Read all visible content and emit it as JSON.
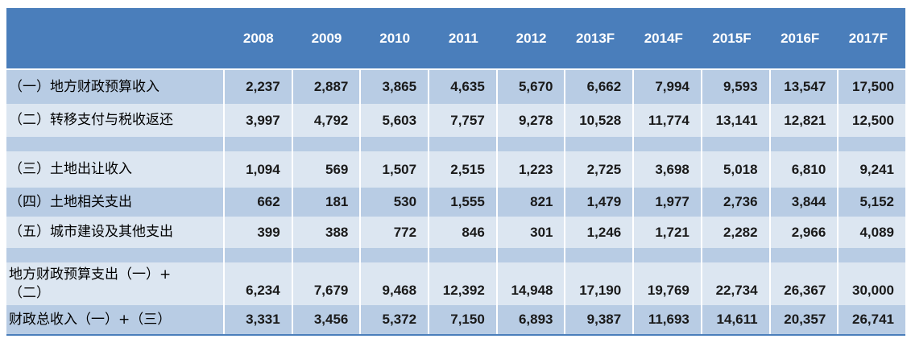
{
  "chart_data": {
    "type": "table",
    "title": "",
    "categories": [
      "2008",
      "2009",
      "2010",
      "2011",
      "2012",
      "2013F",
      "2014F",
      "2015F",
      "2016F",
      "2017F"
    ],
    "series": [
      {
        "name": "（一）地方财政预算收入",
        "values": [
          2237,
          2887,
          3865,
          4635,
          5670,
          6662,
          7994,
          9593,
          13547,
          17500
        ]
      },
      {
        "name": "（二）转移支付与税收返还",
        "values": [
          3997,
          4792,
          5603,
          7757,
          9278,
          10528,
          11774,
          13141,
          12821,
          12500
        ]
      },
      {
        "name": "（三）土地出让收入",
        "values": [
          1094,
          569,
          1507,
          2515,
          1223,
          2725,
          3698,
          5018,
          6810,
          9241
        ]
      },
      {
        "name": "（四）土地相关支出",
        "values": [
          662,
          181,
          530,
          1555,
          821,
          1479,
          1977,
          2736,
          3844,
          5152
        ]
      },
      {
        "name": "（五）城市建设及其他支出",
        "values": [
          399,
          388,
          772,
          846,
          301,
          1246,
          1721,
          2282,
          2966,
          4089
        ]
      },
      {
        "name": "地方财政预算支出（一）+（二）",
        "values": [
          6234,
          7679,
          9468,
          12392,
          14948,
          17190,
          19769,
          22734,
          26367,
          30000
        ]
      },
      {
        "name": "财政总收入（一）+（三）",
        "values": [
          3331,
          3456,
          5372,
          7150,
          6893,
          9387,
          11693,
          14611,
          20357,
          26741
        ]
      }
    ],
    "layout_hints": {
      "legend": "none",
      "grid": "cell-separators-white",
      "header_position": "top"
    }
  },
  "table": {
    "corner_label": "",
    "rows": [
      {
        "series": 0,
        "shade": "medium"
      },
      {
        "series": 1,
        "shade": "light"
      },
      {
        "spacer": true,
        "shade": "medium"
      },
      {
        "series": 2,
        "shade": "light"
      },
      {
        "series": 3,
        "shade": "medium"
      },
      {
        "series": 4,
        "shade": "light"
      },
      {
        "spacer": true,
        "shade": "medium"
      },
      {
        "series": 5,
        "shade": "light",
        "label_display": "地方财政预算支出（一）+\n（二）",
        "numbers_bottom": true
      },
      {
        "series": 6,
        "shade": "medium"
      }
    ],
    "colors": {
      "header_bg": "#4a7ebb",
      "row_medium": "#b8cce4",
      "row_light": "#dce6f1",
      "header_text": "#ffffff",
      "body_text": "#1a1a1a",
      "separator": "#ffffff",
      "bottom_border": "#4a7ebb"
    }
  }
}
